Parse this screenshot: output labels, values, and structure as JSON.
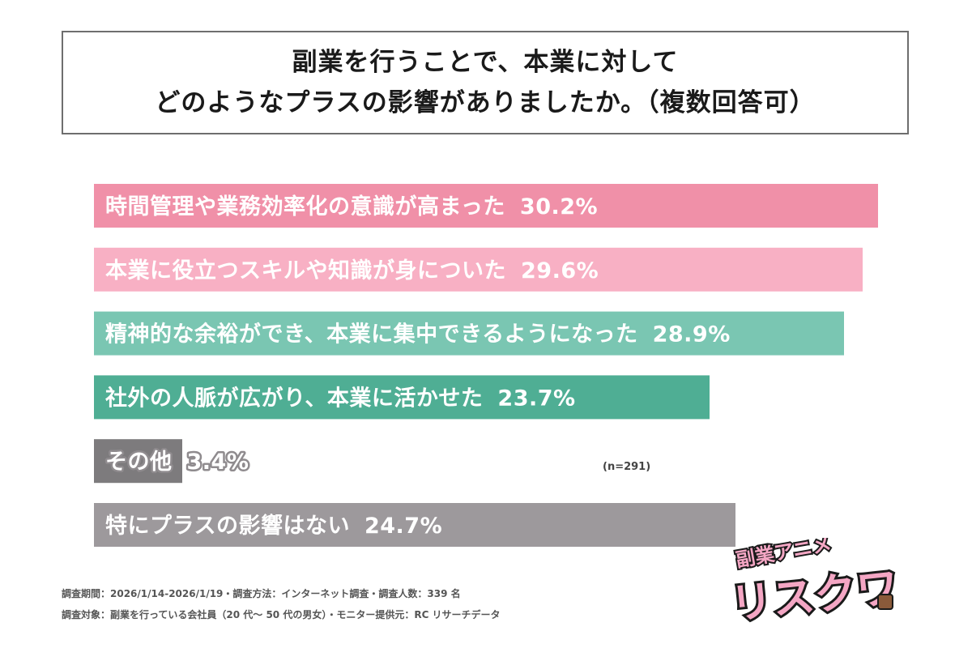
{
  "title": {
    "line1": "副業を行うことで、本業に対して",
    "line2": "どのようなプラスの影響がありましたか。（複数回答可）"
  },
  "chart_data": {
    "type": "bar",
    "orientation": "horizontal",
    "categories": [
      "時間管理や業務効率化の意識が高まった",
      "本業に役立つスキルや知識が身についた",
      "精神的な余裕ができ、本業に集中できるようになった",
      "社外の人脈が広がり、本業に活かせた",
      "その他",
      "特にプラスの影響はない"
    ],
    "values": [
      30.2,
      29.6,
      28.9,
      23.7,
      3.4,
      24.7
    ],
    "value_labels": [
      "30.2%",
      "29.6%",
      "28.9%",
      "23.7%",
      "3.4%",
      "24.7%"
    ],
    "colors": [
      "#f090a8",
      "#f8b0c4",
      "#7ac6b2",
      "#4fae94",
      "#7d7b7d",
      "#9d999c"
    ],
    "xlim": [
      0,
      30.2
    ],
    "grid": false,
    "legend": "none"
  },
  "note": "(n=291)",
  "footer": {
    "line1": "調査期間：2026/1/14-2026/1/19・調査方法：インターネット調査・調査人数：339 名",
    "line2": "調査対象：副業を行っている会社員（20 代～ 50 代の男女）・モニター提供元：RC リサーチデータ"
  },
  "logo": {
    "top_text": "副業アニメ",
    "main_text": "リスクワ",
    "colors": {
      "main": "#f4a6c4",
      "accent": "#7ec6e6",
      "outline": "#1a1a1a"
    }
  }
}
